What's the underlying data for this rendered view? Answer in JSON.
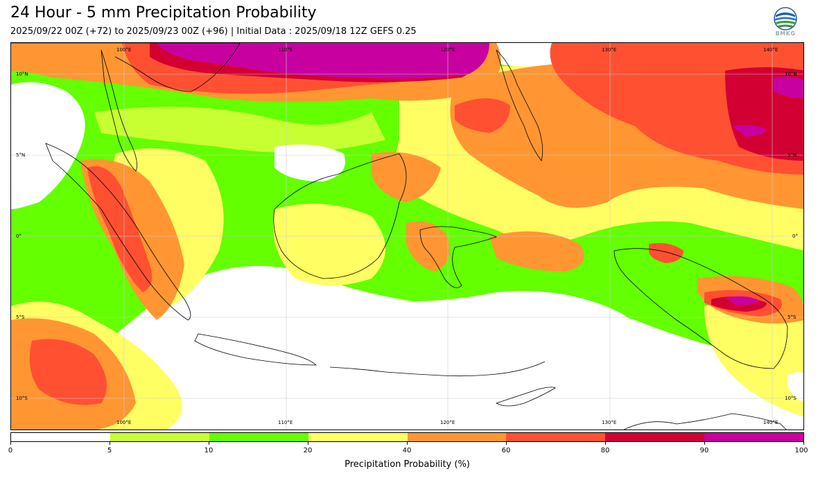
{
  "header": {
    "title": "24 Hour - 5 mm Precipitation Probability",
    "subtitle": "2025/09/22 00Z (+72) to 2025/09/23 00Z (+96) | Initial Data : 2025/09/18 12Z GEFS 0.25",
    "logo_text": "BMKG"
  },
  "map": {
    "lon_labels": [
      "100°E",
      "110°E",
      "120°E",
      "130°E",
      "140°E"
    ],
    "lat_labels": [
      "10°N",
      "5°N",
      "0°",
      "5°S",
      "10°S"
    ]
  },
  "colorbar": {
    "title": "Precipitation Probability (%)",
    "ticks": [
      "0",
      "5",
      "10",
      "20",
      "40",
      "60",
      "80",
      "90",
      "100"
    ],
    "colors": [
      "#ffffff",
      "#c8ff32",
      "#64ff00",
      "#ffff64",
      "#ff9632",
      "#ff5032",
      "#d20032",
      "#c800a0"
    ]
  },
  "colors": {
    "land_outline": "#000000",
    "gridline": "#cccccc"
  }
}
